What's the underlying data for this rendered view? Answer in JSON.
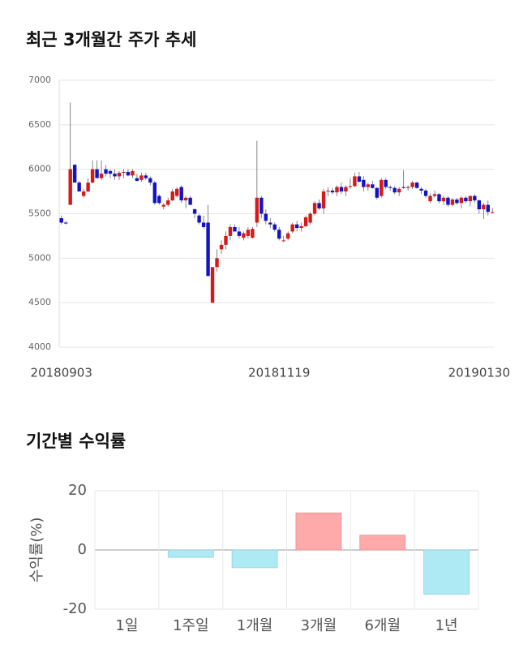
{
  "chart_data": [
    {
      "type": "candlestick",
      "title": "최근 3개월간 주가 추세",
      "categories": [
        "20180903",
        null,
        null,
        null,
        null,
        null,
        null,
        null,
        null,
        null,
        null,
        null,
        null,
        null,
        null,
        null,
        null,
        null,
        null,
        null,
        null,
        null,
        null,
        null,
        null,
        null,
        null,
        null,
        null,
        null,
        null,
        null,
        null,
        null,
        null,
        null,
        null,
        null,
        null,
        null,
        null,
        null,
        null,
        null,
        null,
        null,
        null,
        null,
        null,
        "20181119",
        null,
        null,
        null,
        null,
        null,
        null,
        null,
        null,
        null,
        null,
        null,
        null,
        null,
        null,
        null,
        null,
        null,
        null,
        null,
        null,
        null,
        null,
        null,
        null,
        null,
        null,
        null,
        null,
        null,
        null,
        null,
        null,
        null,
        null,
        null,
        null,
        null,
        null,
        null,
        null,
        null,
        null,
        null,
        null,
        "20190130",
        null,
        null,
        null
      ],
      "open": [
        5450,
        5400,
        5600,
        6050,
        5850,
        5700,
        5750,
        5850,
        6000,
        5900,
        6000,
        5980,
        5950,
        5920,
        5960,
        5970,
        5930,
        5900,
        5880,
        5930,
        5900,
        5850,
        5700,
        5580,
        5600,
        5650,
        5700,
        5800,
        5650,
        5680,
        5550,
        5480,
        5400,
        5400,
        4500,
        4900,
        5100,
        5150,
        5250,
        5350,
        5300,
        5230,
        5250,
        5230,
        5400,
        5680,
        5500,
        5400,
        5380,
        5320,
        5200,
        5220,
        5300,
        5380,
        5340,
        5360,
        5400,
        5500,
        5620,
        5560,
        5750,
        5760,
        5740,
        5800,
        5750,
        5800,
        5810,
        5920,
        5880,
        5800,
        5830,
        5790,
        5700,
        5880,
        5800,
        5790,
        5740,
        5800,
        5790,
        5800,
        5850,
        5780,
        5760,
        5640,
        5700,
        5720,
        5640,
        5680,
        5600,
        5660,
        5620,
        5680,
        5640,
        5700,
        5650,
        5550,
        5600,
        5520
      ],
      "high": [
        5480,
        5420,
        6750,
        6060,
        5870,
        5780,
        5900,
        6100,
        6100,
        6100,
        6050,
        6000,
        6000,
        5980,
        6000,
        6000,
        6000,
        5950,
        5960,
        5960,
        5920,
        5870,
        5720,
        5620,
        5680,
        5780,
        5800,
        5820,
        5700,
        5700,
        5560,
        5500,
        5480,
        5600,
        4900,
        5100,
        5200,
        5300,
        5380,
        5380,
        5350,
        5300,
        5350,
        5350,
        6320,
        5700,
        5550,
        5450,
        5400,
        5350,
        5250,
        5300,
        5400,
        5420,
        5400,
        5480,
        5520,
        5640,
        5660,
        5780,
        5800,
        5790,
        5820,
        5850,
        5820,
        5900,
        5960,
        5970,
        5920,
        5850,
        5870,
        5800,
        5900,
        5900,
        5820,
        5810,
        5800,
        5990,
        5820,
        5870,
        5860,
        5800,
        5780,
        5730,
        5760,
        5730,
        5700,
        5700,
        5680,
        5680,
        5700,
        5700,
        5700,
        5720,
        5660,
        5620,
        5650,
        5560
      ],
      "low": [
        5380,
        5380,
        5600,
        5850,
        5750,
        5680,
        5740,
        5840,
        5900,
        5880,
        5920,
        5900,
        5880,
        5880,
        5900,
        5920,
        5900,
        5860,
        5860,
        5880,
        5820,
        5600,
        5600,
        5550,
        5580,
        5640,
        5680,
        5620,
        5560,
        5600,
        5450,
        5380,
        5330,
        4800,
        4500,
        4850,
        5050,
        5100,
        5200,
        5300,
        5220,
        5200,
        5220,
        5220,
        5350,
        5450,
        5380,
        5340,
        5300,
        5200,
        5180,
        5200,
        5280,
        5300,
        5300,
        5350,
        5380,
        5480,
        5540,
        5500,
        5700,
        5720,
        5700,
        5720,
        5700,
        5780,
        5800,
        5850,
        5750,
        5760,
        5780,
        5660,
        5680,
        5780,
        5760,
        5720,
        5700,
        5780,
        5760,
        5780,
        5780,
        5720,
        5680,
        5620,
        5680,
        5620,
        5600,
        5580,
        5580,
        5600,
        5560,
        5620,
        5580,
        5620,
        5500,
        5440,
        5480,
        5500
      ],
      "close": [
        5400,
        5390,
        6000,
        5850,
        5750,
        5750,
        5850,
        6000,
        5900,
        5950,
        5950,
        5950,
        5920,
        5960,
        5970,
        5930,
        5980,
        5870,
        5930,
        5900,
        5850,
        5620,
        5620,
        5600,
        5650,
        5750,
        5780,
        5650,
        5680,
        5600,
        5500,
        5400,
        5350,
        4800,
        4900,
        5000,
        5150,
        5250,
        5350,
        5300,
        5250,
        5280,
        5320,
        5330,
        5680,
        5500,
        5420,
        5380,
        5320,
        5220,
        5200,
        5280,
        5380,
        5340,
        5360,
        5460,
        5500,
        5620,
        5560,
        5750,
        5760,
        5740,
        5800,
        5750,
        5800,
        5810,
        5920,
        5860,
        5800,
        5830,
        5790,
        5680,
        5880,
        5800,
        5790,
        5740,
        5780,
        5790,
        5800,
        5850,
        5790,
        5760,
        5700,
        5700,
        5720,
        5640,
        5680,
        5600,
        5660,
        5620,
        5680,
        5640,
        5700,
        5650,
        5550,
        5600,
        5520,
        5520
      ],
      "up_color": "#d51a1a",
      "down_color": "#1313c4",
      "ylim": [
        4000,
        7000
      ],
      "yticks": [
        4000,
        4500,
        5000,
        5500,
        6000,
        6500,
        7000
      ],
      "grid": true
    },
    {
      "type": "bar",
      "title": "기간별 수익률",
      "ylabel": "수익률(%)",
      "categories": [
        "1일",
        "1주일",
        "1개월",
        "3개월",
        "6개월",
        "1년"
      ],
      "values": [
        0,
        -2.5,
        -6,
        12.5,
        5,
        -15
      ],
      "positive_color": "#ffaaaa",
      "negative_color": "#aeeaf4",
      "ylim": [
        -20,
        20
      ],
      "yticks": [
        -20,
        0,
        20
      ],
      "grid": true
    }
  ]
}
